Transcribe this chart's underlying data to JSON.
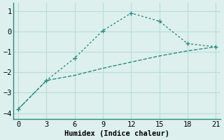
{
  "line1_x": [
    0,
    3,
    6,
    9,
    12,
    15,
    18,
    21
  ],
  "line1_y": [
    -3.8,
    -2.4,
    -1.3,
    0.05,
    0.9,
    0.5,
    -0.6,
    -0.75
  ],
  "line2_x": [
    0,
    3,
    6,
    9,
    12,
    15,
    18,
    21
  ],
  "line2_y": [
    -3.8,
    -2.4,
    -2.15,
    -1.8,
    -1.5,
    -1.2,
    -0.95,
    -0.75
  ],
  "color": "#2a8a7e",
  "bg_color": "#ddf0ed",
  "grid_color": "#b8ddd8",
  "xlabel": "Humidex (Indice chaleur)",
  "xlim": [
    -0.5,
    21.5
  ],
  "ylim": [
    -4.3,
    1.4
  ],
  "xticks": [
    0,
    3,
    6,
    9,
    12,
    15,
    18,
    21
  ],
  "yticks": [
    -4,
    -3,
    -2,
    -1,
    0,
    1
  ],
  "xlabel_fontsize": 7.5,
  "tick_fontsize": 7.5
}
